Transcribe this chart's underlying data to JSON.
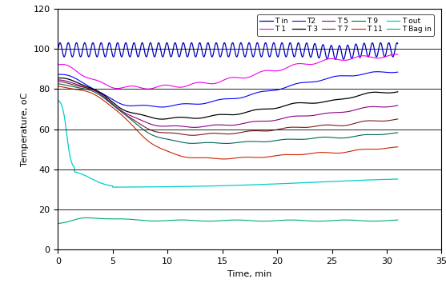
{
  "xlabel": "Time, min",
  "ylabel": "Temperature, oC",
  "xlim": [
    0,
    35
  ],
  "ylim": [
    0,
    120
  ],
  "yticks": [
    0,
    20,
    40,
    60,
    80,
    100,
    120
  ],
  "xticks": [
    0,
    5,
    10,
    15,
    20,
    25,
    30,
    35
  ],
  "figsize": [
    5.57,
    3.59
  ],
  "dpi": 100,
  "series": [
    {
      "key": "T_in",
      "color": "#0000bb",
      "label": "T in",
      "lw": 0.9
    },
    {
      "key": "T1",
      "color": "#ee00ee",
      "label": "T 1",
      "lw": 0.8
    },
    {
      "key": "T2",
      "color": "#0000ff",
      "label": "T2",
      "lw": 0.8
    },
    {
      "key": "T3",
      "color": "#000000",
      "label": "T 3",
      "lw": 0.9
    },
    {
      "key": "T5",
      "color": "#880088",
      "label": "T 5",
      "lw": 0.8
    },
    {
      "key": "T7",
      "color": "#7a1a1a",
      "label": "T 7",
      "lw": 0.8
    },
    {
      "key": "T9",
      "color": "#006655",
      "label": "T 9",
      "lw": 0.8
    },
    {
      "key": "T11",
      "color": "#cc2200",
      "label": "T 11",
      "lw": 0.8
    },
    {
      "key": "T_out",
      "color": "#00cccc",
      "label": "T out",
      "lw": 0.9
    },
    {
      "key": "T_bag_in",
      "color": "#00aa77",
      "label": "T Bag in",
      "lw": 0.8
    }
  ]
}
